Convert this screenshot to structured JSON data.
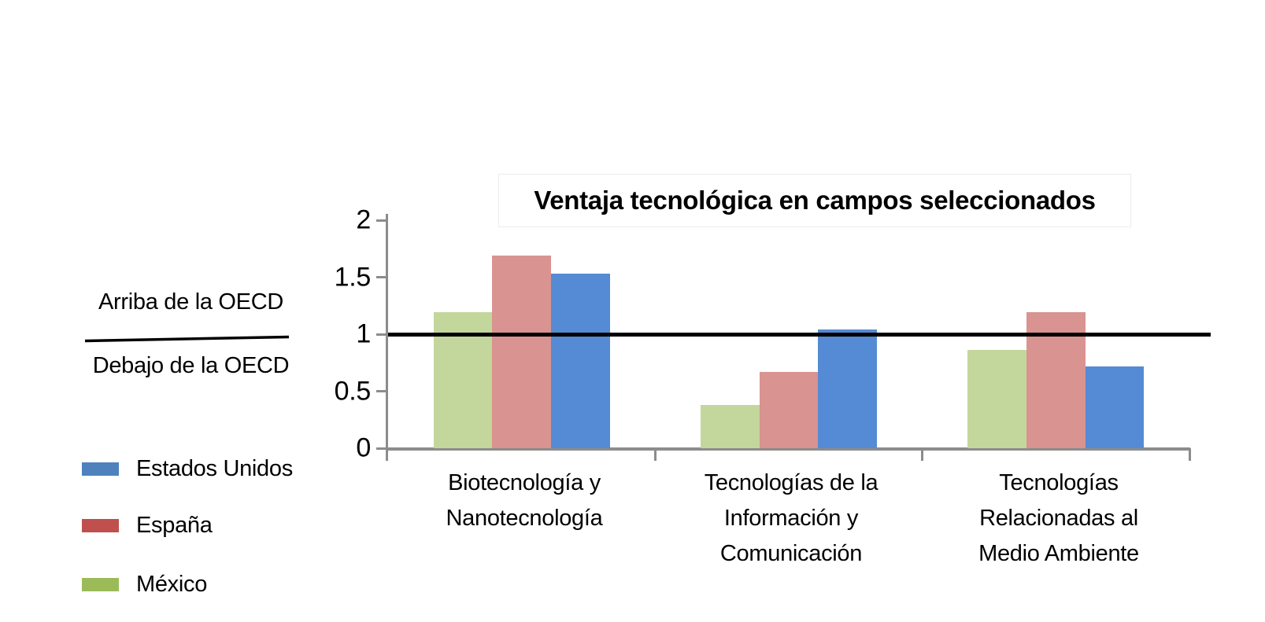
{
  "chart_data": {
    "type": "bar",
    "title": "Ventaja tecnológica en campos seleccionados",
    "categories": [
      "Biotecnología y Nanotecnología",
      "Tecnologías de la Información y Comunicación",
      "Tecnologías Relacionadas al Medio Ambiente"
    ],
    "category_lines": [
      [
        "Biotecnología y",
        "Nanotecnología"
      ],
      [
        "Tecnologías de la",
        "Información y",
        "Comunicación"
      ],
      [
        "Tecnologías",
        "Relacionadas al",
        "Medio Ambiente"
      ]
    ],
    "series": [
      {
        "name": "México",
        "color": "#c3d69b",
        "values": [
          1.19,
          0.38,
          0.86
        ]
      },
      {
        "name": "España",
        "color": "#d99390",
        "values": [
          1.69,
          0.67,
          1.19
        ]
      },
      {
        "name": "Estados Unidos",
        "color": "#548bd4",
        "values": [
          1.53,
          1.04,
          0.72
        ]
      }
    ],
    "ylim": [
      0,
      2
    ],
    "ytick_values": [
      0,
      0.5,
      1,
      1.5,
      2
    ],
    "ytick_labels": [
      "0",
      "0.5",
      "1",
      "1.5",
      "2"
    ],
    "reference_line": {
      "value": 1,
      "color": "#000000"
    },
    "axis_color": "#8c8c8c",
    "grid": false,
    "legend_position": "bottom-left",
    "bar_order_note": "left to right in each group: México, España, Estados Unidos"
  },
  "annotation": {
    "above": "Arriba de la OECD",
    "below": "Debajo de la OECD"
  },
  "legend": {
    "items": [
      {
        "label": "Estados Unidos",
        "color": "#4f81bd"
      },
      {
        "label": "España",
        "color": "#c0504d"
      },
      {
        "label": "México",
        "color": "#9bbb59"
      }
    ]
  }
}
